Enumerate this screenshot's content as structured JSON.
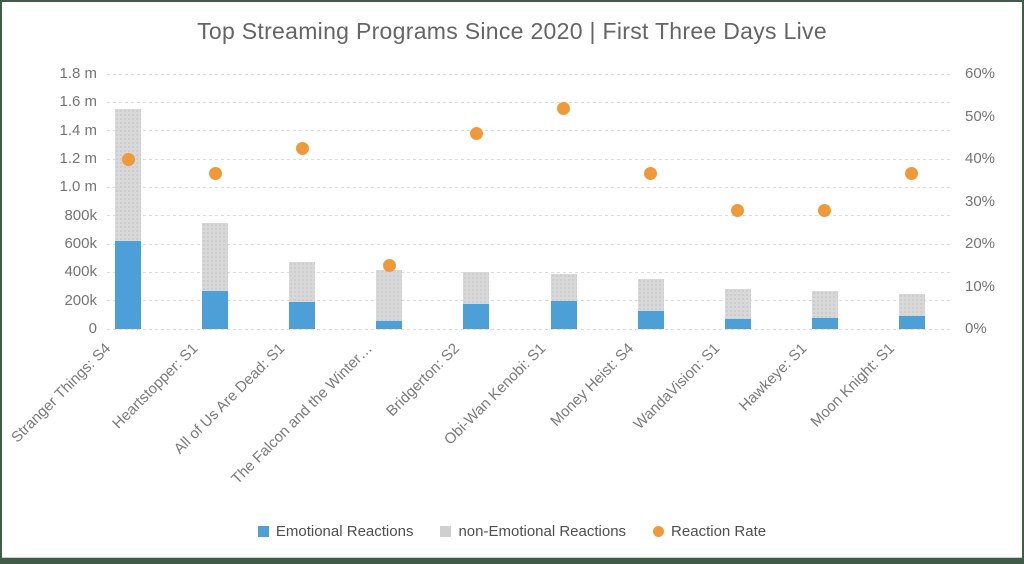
{
  "title": "Top Streaming Programs Since 2020 | First Three Days Live",
  "colors": {
    "frame_border": "#405C48",
    "emotional_blue": "#4C9FD7",
    "non_emotional_gray": "#D8D8D8",
    "non_emotional_dot_texture": "#C9C9C9",
    "reaction_rate_orange": "#F0993A",
    "gridline": "#DCDCDC",
    "tick_text": "#757575",
    "title_text": "#656565"
  },
  "chart_data": {
    "type": "combo (stacked bar + scatter on secondary axis)",
    "title": "Top Streaming Programs Since 2020 | First Three Days Live",
    "grid": true,
    "legend_position": "bottom",
    "categories": [
      "Stranger Things: S4",
      "Heartstopper: S1",
      "All of Us Are Dead: S1",
      "The Falcon and the Winter…",
      "Bridgerton: S2",
      "Obi-Wan Kenobi: S1",
      "Money Heist: S4",
      "WandaVision: S1",
      "Hawkeye: S1",
      "Moon Knight: S1"
    ],
    "series": [
      {
        "name": "Emotional Reactions",
        "render": "bar-stack",
        "axis": "left",
        "color": "#4C9FD7",
        "values": [
          620000,
          265000,
          190000,
          55000,
          175000,
          195000,
          125000,
          72000,
          78000,
          95000
        ]
      },
      {
        "name": "non-Emotional Reactions",
        "render": "bar-stack",
        "axis": "left",
        "color": "#D8D8D8",
        "values": [
          930000,
          480000,
          280000,
          360000,
          230000,
          190000,
          230000,
          213000,
          190000,
          155000
        ]
      },
      {
        "name": "Reaction Rate",
        "render": "scatter",
        "axis": "right",
        "color": "#F0993A",
        "unit": "%",
        "values": [
          40,
          36.5,
          42.5,
          15,
          46,
          52,
          36.5,
          28,
          28,
          36.5
        ]
      }
    ],
    "stacked_totals": [
      1550000,
      745000,
      470000,
      415000,
      405000,
      385000,
      355000,
      285000,
      268000,
      250000
    ],
    "left_axis": {
      "min": 0,
      "max": 1800000,
      "tick_labels": [
        "1.8 m",
        "1.6 m",
        "1.4 m",
        "1.2 m",
        "1.0 m",
        "800k",
        "600k",
        "400k",
        "200k",
        "0"
      ]
    },
    "right_axis": {
      "min": 0,
      "max": 60,
      "tick_labels": [
        "60%",
        "50%",
        "40%",
        "30%",
        "20%",
        "10%",
        "0%"
      ]
    }
  },
  "legend": {
    "items": [
      {
        "label": "Emotional Reactions",
        "shape": "square",
        "color": "#4C9FD7"
      },
      {
        "label": "non-Emotional Reactions",
        "shape": "square",
        "color": "#CFCFCF"
      },
      {
        "label": "Reaction Rate",
        "shape": "circle",
        "color": "#F0993A"
      }
    ]
  }
}
